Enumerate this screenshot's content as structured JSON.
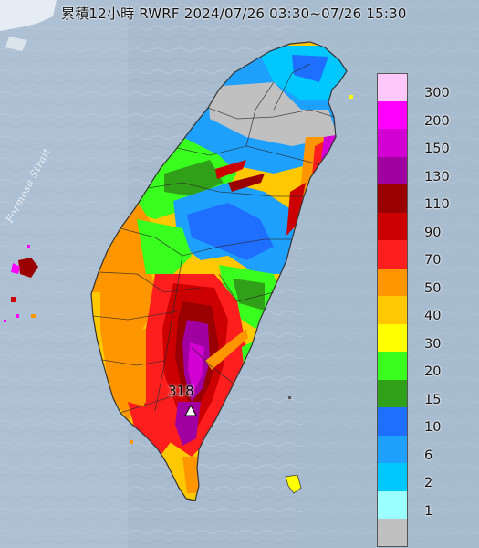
{
  "title": "累積12小時 RWRF 2024/07/26 03:30~07/26 15:30",
  "peak_label": "318",
  "map_label": "Formosa Strait",
  "legend": [
    {
      "label": "300",
      "color": "#ffc8fa"
    },
    {
      "label": "200",
      "color": "#ff00ff"
    },
    {
      "label": "150",
      "color": "#d200d2"
    },
    {
      "label": "130",
      "color": "#a000a0"
    },
    {
      "label": "110",
      "color": "#9a0000"
    },
    {
      "label": "90",
      "color": "#cc0000"
    },
    {
      "label": "70",
      "color": "#ff1e1e"
    },
    {
      "label": "50",
      "color": "#ff9600"
    },
    {
      "label": "40",
      "color": "#ffc800"
    },
    {
      "label": "30",
      "color": "#ffff00"
    },
    {
      "label": "20",
      "color": "#38ff1e"
    },
    {
      "label": "15",
      "color": "#30a018"
    },
    {
      "label": "10",
      "color": "#1e6eff"
    },
    {
      "label": "6",
      "color": "#1ea0ff"
    },
    {
      "label": "2",
      "color": "#00c8ff"
    },
    {
      "label": "1",
      "color": "#9bffff"
    },
    {
      "label": "",
      "color": "#c0c0c0"
    }
  ]
}
